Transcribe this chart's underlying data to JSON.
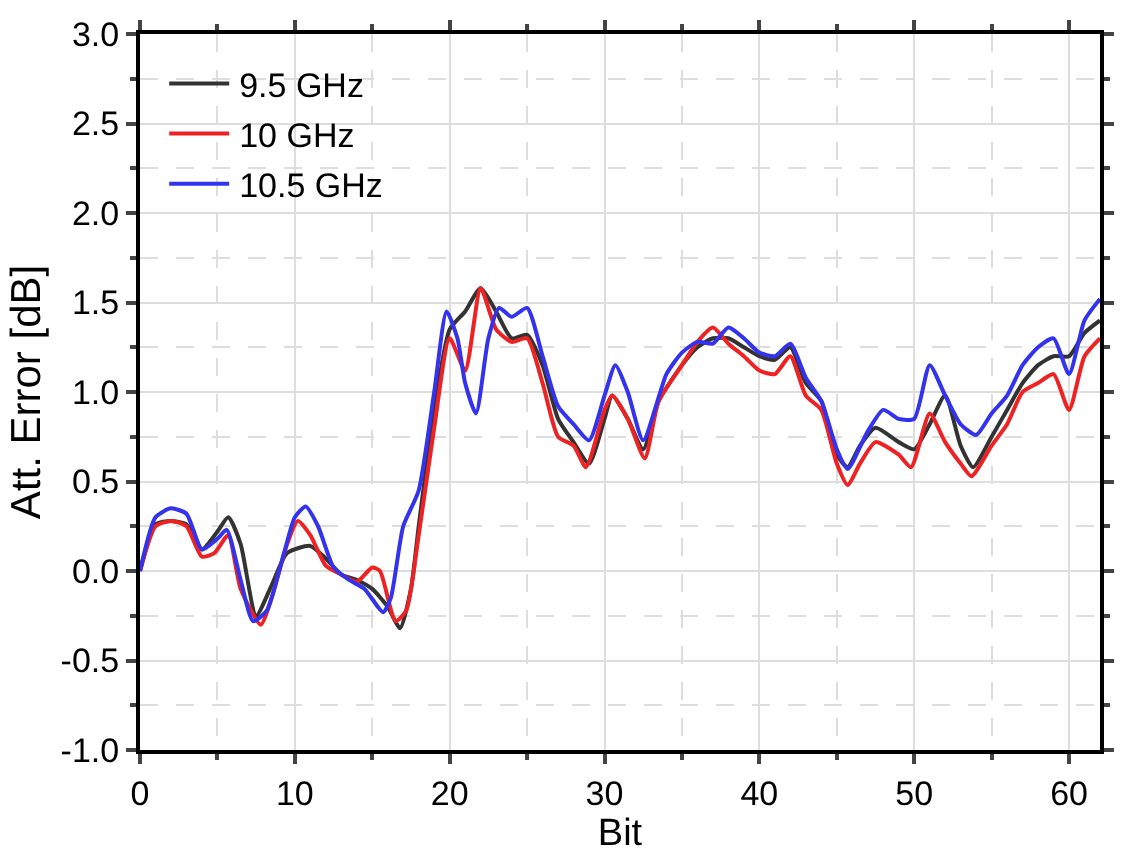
{
  "chart_data": {
    "type": "line",
    "xlabel": "Bit",
    "ylabel": "Att. Error [dB]",
    "xlim": [
      0,
      62
    ],
    "xticks": [
      0,
      10,
      20,
      30,
      40,
      50,
      60
    ],
    "ylim": [
      -1.0,
      3.0
    ],
    "yticks": [
      {
        "value": -1.0,
        "label": "-1.0"
      },
      {
        "value": -0.5,
        "label": "-0.5"
      },
      {
        "value": 0,
        "label": "0.0"
      },
      {
        "value": 0.5,
        "label": "0.5"
      },
      {
        "value": 1.0,
        "label": "1.0"
      },
      {
        "value": 1.5,
        "label": "1.5"
      },
      {
        "value": 2.0,
        "label": "2.0"
      },
      {
        "value": 2.5,
        "label": "2.5"
      },
      {
        "value": 3.0,
        "label": "3.0"
      }
    ],
    "grid": true,
    "legend": "top left",
    "marker": "none",
    "line_style": "solid",
    "series": [
      {
        "name": "9.5 GHz",
        "color": "#333333",
        "x": [
          0,
          1,
          2,
          3,
          4,
          5,
          5.7,
          6.5,
          7.5,
          8.5,
          9.5,
          11,
          12,
          13,
          14,
          15,
          16,
          16.8,
          17.5,
          18,
          19,
          20,
          21,
          22,
          23,
          24,
          25,
          26,
          27,
          28,
          29,
          30,
          30.5,
          31.5,
          32.5,
          33.5,
          35,
          36,
          37,
          38,
          39,
          40,
          41,
          42,
          43,
          44,
          45,
          45.7,
          46.5,
          47.5,
          49,
          50,
          51,
          52,
          53,
          53.8,
          55,
          56,
          57,
          58,
          59,
          60,
          61,
          62
        ],
        "values": [
          0,
          0.26,
          0.28,
          0.26,
          0.12,
          0.22,
          0.3,
          0.15,
          -0.25,
          -0.08,
          0.1,
          0.14,
          0.07,
          -0.02,
          -0.05,
          -0.1,
          -0.2,
          -0.32,
          -0.1,
          0.25,
          0.9,
          1.35,
          1.45,
          1.58,
          1.45,
          1.3,
          1.32,
          1.15,
          0.85,
          0.72,
          0.6,
          0.85,
          0.98,
          0.85,
          0.68,
          0.95,
          1.15,
          1.25,
          1.3,
          1.3,
          1.25,
          1.2,
          1.18,
          1.25,
          1.05,
          0.95,
          0.65,
          0.58,
          0.7,
          0.8,
          0.72,
          0.68,
          0.82,
          0.98,
          0.7,
          0.58,
          0.75,
          0.9,
          1.05,
          1.15,
          1.2,
          1.2,
          1.33,
          1.4
        ]
      },
      {
        "name": "10 GHz",
        "color": "#ee2222",
        "x": [
          0,
          1,
          2,
          3,
          4,
          4.8,
          5.7,
          6.5,
          7.8,
          8.5,
          9.5,
          10.2,
          11,
          12,
          13,
          14,
          15,
          15.5,
          16.5,
          17.2,
          18,
          19,
          20,
          21,
          22,
          23,
          24,
          25,
          26,
          27,
          28,
          28.8,
          30,
          30.5,
          31.5,
          32.6,
          33.5,
          35,
          36,
          37,
          38,
          39,
          40,
          41,
          42,
          43,
          44,
          45,
          45.7,
          46.5,
          47.5,
          49,
          49.8,
          51,
          52,
          53,
          53.7,
          55,
          56,
          57,
          58,
          59,
          60,
          61,
          62
        ],
        "values": [
          0,
          0.25,
          0.28,
          0.25,
          0.08,
          0.1,
          0.2,
          -0.1,
          -0.3,
          -0.15,
          0.15,
          0.28,
          0.2,
          0.03,
          -0.02,
          -0.06,
          0.02,
          0.0,
          -0.28,
          -0.22,
          0.2,
          0.8,
          1.3,
          1.12,
          1.58,
          1.35,
          1.28,
          1.3,
          1.05,
          0.75,
          0.7,
          0.58,
          0.9,
          0.98,
          0.85,
          0.63,
          0.95,
          1.15,
          1.28,
          1.36,
          1.27,
          1.2,
          1.12,
          1.1,
          1.2,
          0.98,
          0.9,
          0.6,
          0.48,
          0.6,
          0.72,
          0.65,
          0.58,
          0.88,
          0.72,
          0.6,
          0.53,
          0.7,
          0.82,
          1.0,
          1.05,
          1.1,
          0.9,
          1.2,
          1.3
        ]
      },
      {
        "name": "10.5 GHz",
        "color": "#3333ee",
        "x": [
          0,
          1,
          2,
          3,
          4,
          5,
          5.6,
          6.5,
          7.3,
          8.2,
          9.3,
          10,
          10.7,
          11.5,
          12.5,
          13.5,
          14.5,
          15.7,
          16.2,
          17,
          18,
          19,
          19.8,
          20.5,
          21,
          21.7,
          22.5,
          23.2,
          24,
          25,
          26,
          27,
          28,
          29,
          30,
          30.7,
          31.5,
          32.5,
          34,
          35,
          36,
          37,
          38,
          39,
          40,
          41,
          42,
          43,
          44,
          45,
          45.7,
          47,
          48,
          49,
          50,
          51,
          52,
          53,
          54,
          55,
          56,
          57,
          58,
          59,
          60,
          61,
          62
        ],
        "values": [
          0,
          0.3,
          0.35,
          0.32,
          0.12,
          0.18,
          0.23,
          -0.05,
          -0.28,
          -0.22,
          0.1,
          0.3,
          0.36,
          0.25,
          0.02,
          -0.05,
          -0.1,
          -0.23,
          -0.15,
          0.25,
          0.45,
          1.0,
          1.45,
          1.3,
          1.05,
          0.88,
          1.3,
          1.47,
          1.42,
          1.47,
          1.2,
          0.92,
          0.82,
          0.73,
          0.98,
          1.15,
          1.0,
          0.73,
          1.1,
          1.22,
          1.28,
          1.27,
          1.36,
          1.3,
          1.22,
          1.2,
          1.27,
          1.08,
          0.95,
          0.68,
          0.57,
          0.78,
          0.9,
          0.85,
          0.85,
          1.15,
          0.98,
          0.82,
          0.76,
          0.88,
          0.98,
          1.15,
          1.25,
          1.3,
          1.1,
          1.4,
          1.52
        ]
      }
    ]
  }
}
